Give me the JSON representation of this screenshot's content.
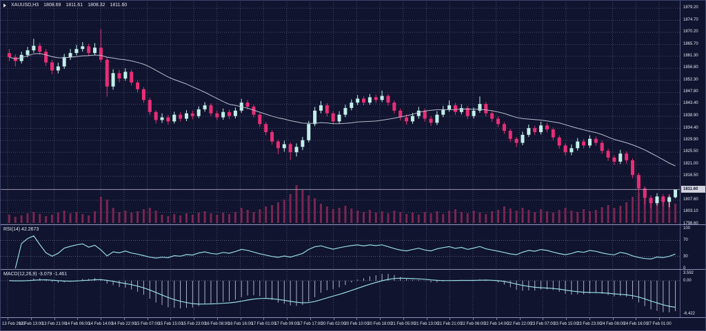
{
  "header": {
    "symbol_period": "XAUUSD,H3",
    "open": "1808.69",
    "high": "1811.61",
    "low": "1808.32",
    "close": "1811.60"
  },
  "panels": {
    "rsi_label": "RSI(14) 42.2673",
    "macd_label": "MACD(12,26,9) -3.079 -1.461",
    "rsi_scale_labels": [
      "100",
      "70",
      "30",
      "0"
    ],
    "rsi_scale_values": [
      100,
      70,
      30,
      0
    ],
    "rsi_levels": [
      70,
      30
    ],
    "macd_scale_labels": [
      "3.592",
      "0.00",
      "-6.422"
    ]
  },
  "colors": {
    "background": "#10142e",
    "bull": "#c2efe9",
    "bear": "#e82d76",
    "volume": "#7b2552",
    "ma": "#b9bdcf",
    "indicator_line": "#98dbe6",
    "histogram": "#aeb2cc",
    "grid": "#7d82ab",
    "separator": "#8f94bc",
    "text": "#e4e6f2",
    "price_line": "#c0b4c8",
    "price_badge_bg": "#d2d4de",
    "price_badge_text": "#10142e"
  },
  "chart_data": {
    "type": "candlestick",
    "symbol": "XAUUSD",
    "timeframe": "H3",
    "title": "XAUUSD,H3 gold candlestick chart with MA, volume, RSI(14) and MACD(12,26,9)",
    "ylim": [
      1798.6,
      1879.2
    ],
    "current_price": 1811.6,
    "ma_period": 21,
    "rsi_period": 14,
    "rsi_current": 42.2673,
    "macd_fast": 12,
    "macd_slow": 26,
    "macd_signal_period": 9,
    "macd_main_current": -3.079,
    "macd_signal_current": -1.461,
    "price_ticks": [
      "1879.20",
      "1874.70",
      "1870.20",
      "1865.70",
      "1861.30",
      "1856.80",
      "1852.30",
      "1847.80",
      "1843.40",
      "1838.90",
      "1834.40",
      "1829.90",
      "1825.50",
      "1821.00",
      "1816.50",
      "1807.60",
      "1803.10",
      "1798.60"
    ],
    "x_labels": [
      "13 Feb 2023",
      "13 Feb 13:00",
      "13 Feb 21:00",
      "14 Feb 06:00",
      "14 Feb 14:00",
      "14 Feb 22:00",
      "15 Feb 07:00",
      "15 Feb 15:00",
      "15 Feb 23:00",
      "16 Feb 08:00",
      "16 Feb 16:00",
      "17 Feb 01:00",
      "17 Feb 09:00",
      "17 Feb 17:00",
      "20 Feb 02:00",
      "20 Feb 10:00",
      "20 Feb 18:00",
      "21 Feb 05:00",
      "21 Feb 13:00",
      "21 Feb 21:00",
      "22 Feb 06:00",
      "22 Feb 14:00",
      "22 Feb 22:00",
      "23 Feb 07:00",
      "23 Feb 15:00",
      "23 Feb 23:00",
      "24 Feb 08:00",
      "24 Feb 16:00",
      "27 Feb 01:00"
    ],
    "candles": [
      [
        1862.5,
        1864.0,
        1859.5,
        1861.0,
        12
      ],
      [
        1861.0,
        1862.0,
        1857.5,
        1859.5,
        9
      ],
      [
        1859.5,
        1863.0,
        1858.6,
        1861.8,
        11
      ],
      [
        1861.8,
        1864.8,
        1860.9,
        1863.5,
        14
      ],
      [
        1863.5,
        1867.8,
        1862.6,
        1865.2,
        16
      ],
      [
        1865.2,
        1866.3,
        1861.8,
        1863.0,
        13
      ],
      [
        1863.0,
        1864.0,
        1857.7,
        1859.0,
        10
      ],
      [
        1859.0,
        1860.0,
        1854.6,
        1856.0,
        12
      ],
      [
        1856.0,
        1858.9,
        1854.9,
        1857.5,
        15
      ],
      [
        1857.5,
        1862.2,
        1856.6,
        1861.0,
        18
      ],
      [
        1861.0,
        1864.0,
        1859.9,
        1862.5,
        14
      ],
      [
        1862.5,
        1865.5,
        1861.6,
        1864.0,
        16
      ],
      [
        1864.0,
        1866.6,
        1863.0,
        1865.0,
        13
      ],
      [
        1865.0,
        1866.0,
        1861.4,
        1862.5,
        11
      ],
      [
        1862.5,
        1866.2,
        1861.7,
        1864.5,
        17
      ],
      [
        1864.5,
        1871.5,
        1859.0,
        1860.0,
        38
      ],
      [
        1860.0,
        1860.8,
        1846.2,
        1850.0,
        34
      ],
      [
        1850.0,
        1856.4,
        1848.8,
        1855.0,
        22
      ],
      [
        1855.0,
        1856.2,
        1851.6,
        1853.0,
        16
      ],
      [
        1853.0,
        1856.8,
        1852.2,
        1855.5,
        18
      ],
      [
        1855.5,
        1856.3,
        1850.4,
        1851.5,
        15
      ],
      [
        1851.5,
        1852.4,
        1847.8,
        1849.0,
        17
      ],
      [
        1849.0,
        1849.8,
        1843.9,
        1845.0,
        20
      ],
      [
        1845.0,
        1845.8,
        1839.4,
        1840.5,
        22
      ],
      [
        1840.5,
        1841.2,
        1836.2,
        1837.5,
        18
      ],
      [
        1837.5,
        1840.0,
        1836.4,
        1838.5,
        12
      ],
      [
        1838.5,
        1839.4,
        1835.8,
        1837.0,
        10
      ],
      [
        1837.0,
        1840.6,
        1836.2,
        1839.5,
        13
      ],
      [
        1839.5,
        1840.4,
        1836.9,
        1838.0,
        11
      ],
      [
        1838.0,
        1841.2,
        1837.1,
        1840.0,
        14
      ],
      [
        1840.0,
        1841.0,
        1837.8,
        1839.0,
        12
      ],
      [
        1839.0,
        1842.6,
        1838.2,
        1841.5,
        15
      ],
      [
        1841.5,
        1844.2,
        1840.6,
        1843.0,
        17
      ],
      [
        1843.0,
        1843.8,
        1839.0,
        1840.0,
        14
      ],
      [
        1840.0,
        1841.0,
        1837.4,
        1838.5,
        12
      ],
      [
        1838.5,
        1841.8,
        1837.6,
        1840.5,
        15
      ],
      [
        1840.5,
        1841.4,
        1837.9,
        1839.0,
        13
      ],
      [
        1839.0,
        1842.2,
        1838.1,
        1841.0,
        16
      ],
      [
        1841.0,
        1845.4,
        1840.2,
        1844.0,
        22
      ],
      [
        1844.0,
        1845.0,
        1841.4,
        1842.5,
        19
      ],
      [
        1842.5,
        1843.2,
        1838.4,
        1839.5,
        16
      ],
      [
        1839.5,
        1840.2,
        1834.9,
        1836.0,
        20
      ],
      [
        1836.0,
        1836.8,
        1831.8,
        1833.0,
        24
      ],
      [
        1833.0,
        1833.8,
        1828.3,
        1829.5,
        26
      ],
      [
        1829.5,
        1830.2,
        1824.8,
        1827.0,
        30
      ],
      [
        1827.0,
        1829.8,
        1825.7,
        1828.5,
        34
      ],
      [
        1828.5,
        1829.2,
        1822.6,
        1825.5,
        42
      ],
      [
        1825.5,
        1828.8,
        1823.9,
        1827.5,
        55
      ],
      [
        1827.5,
        1831.2,
        1826.3,
        1830.0,
        48
      ],
      [
        1830.0,
        1837.2,
        1829.2,
        1836.0,
        40
      ],
      [
        1836.0,
        1842.4,
        1835.2,
        1841.0,
        36
      ],
      [
        1841.0,
        1844.6,
        1840.0,
        1843.0,
        28
      ],
      [
        1843.0,
        1843.8,
        1838.9,
        1840.0,
        24
      ],
      [
        1840.0,
        1840.8,
        1835.9,
        1837.0,
        20
      ],
      [
        1837.0,
        1840.8,
        1836.1,
        1839.5,
        22
      ],
      [
        1839.5,
        1843.2,
        1838.6,
        1842.0,
        25
      ],
      [
        1842.0,
        1845.2,
        1841.1,
        1844.0,
        21
      ],
      [
        1844.0,
        1846.8,
        1843.1,
        1845.5,
        18
      ],
      [
        1845.5,
        1846.4,
        1843.0,
        1844.0,
        16
      ],
      [
        1844.0,
        1847.2,
        1843.2,
        1846.0,
        19
      ],
      [
        1846.0,
        1847.0,
        1843.9,
        1845.0,
        15
      ],
      [
        1845.0,
        1848.5,
        1844.2,
        1846.5,
        17
      ],
      [
        1846.5,
        1847.2,
        1842.9,
        1844.0,
        14
      ],
      [
        1844.0,
        1844.8,
        1839.9,
        1841.0,
        18
      ],
      [
        1841.0,
        1841.8,
        1837.3,
        1838.5,
        16
      ],
      [
        1838.5,
        1839.6,
        1835.8,
        1837.0,
        13
      ],
      [
        1837.0,
        1840.2,
        1836.1,
        1839.0,
        15
      ],
      [
        1839.0,
        1842.4,
        1838.0,
        1841.0,
        12
      ],
      [
        1841.0,
        1841.8,
        1836.9,
        1838.0,
        16
      ],
      [
        1838.0,
        1839.0,
        1835.3,
        1836.5,
        14
      ],
      [
        1836.5,
        1840.8,
        1835.6,
        1839.5,
        17
      ],
      [
        1839.5,
        1842.8,
        1838.6,
        1841.5,
        13
      ],
      [
        1841.5,
        1844.8,
        1840.6,
        1843.0,
        18
      ],
      [
        1843.0,
        1843.9,
        1839.4,
        1840.5,
        20
      ],
      [
        1840.5,
        1843.4,
        1839.6,
        1842.0,
        16
      ],
      [
        1842.0,
        1842.8,
        1837.9,
        1839.0,
        14
      ],
      [
        1839.0,
        1842.2,
        1838.1,
        1841.0,
        18
      ],
      [
        1841.0,
        1846.3,
        1840.2,
        1843.5,
        15
      ],
      [
        1843.5,
        1844.2,
        1838.9,
        1840.0,
        13
      ],
      [
        1840.0,
        1840.8,
        1836.8,
        1838.0,
        17
      ],
      [
        1838.0,
        1838.8,
        1834.9,
        1836.0,
        19
      ],
      [
        1836.0,
        1836.8,
        1832.3,
        1833.5,
        24
      ],
      [
        1833.5,
        1834.2,
        1829.3,
        1830.5,
        21
      ],
      [
        1830.5,
        1831.2,
        1827.4,
        1829.0,
        18
      ],
      [
        1829.0,
        1833.2,
        1828.1,
        1832.0,
        22
      ],
      [
        1832.0,
        1835.8,
        1831.2,
        1834.5,
        19
      ],
      [
        1834.5,
        1835.4,
        1831.9,
        1833.0,
        16
      ],
      [
        1833.0,
        1836.9,
        1832.1,
        1835.5,
        20
      ],
      [
        1835.5,
        1836.4,
        1832.9,
        1834.0,
        17
      ],
      [
        1834.0,
        1834.8,
        1829.9,
        1831.0,
        15
      ],
      [
        1831.0,
        1831.8,
        1826.8,
        1828.0,
        19
      ],
      [
        1828.0,
        1828.8,
        1824.3,
        1825.5,
        22
      ],
      [
        1825.5,
        1828.4,
        1824.4,
        1827.0,
        18
      ],
      [
        1827.0,
        1830.8,
        1826.1,
        1829.5,
        16
      ],
      [
        1829.5,
        1830.4,
        1826.9,
        1828.0,
        20
      ],
      [
        1828.0,
        1831.8,
        1827.1,
        1830.5,
        17
      ],
      [
        1830.5,
        1831.4,
        1827.9,
        1829.0,
        19
      ],
      [
        1829.0,
        1829.8,
        1824.9,
        1826.0,
        23
      ],
      [
        1826.0,
        1826.8,
        1822.3,
        1823.5,
        26
      ],
      [
        1823.5,
        1824.4,
        1820.8,
        1822.0,
        22
      ],
      [
        1822.0,
        1826.4,
        1821.1,
        1825.0,
        25
      ],
      [
        1825.0,
        1825.8,
        1821.3,
        1822.5,
        30
      ],
      [
        1822.5,
        1823.2,
        1815.8,
        1817.0,
        38
      ],
      [
        1817.0,
        1817.8,
        1810.4,
        1812.0,
        44
      ],
      [
        1812.0,
        1812.8,
        1805.9,
        1808.5,
        40
      ],
      [
        1808.5,
        1809.4,
        1804.8,
        1806.5,
        34
      ],
      [
        1806.5,
        1810.2,
        1805.6,
        1809.0,
        30
      ],
      [
        1809.0,
        1809.8,
        1805.4,
        1807.0,
        36
      ],
      [
        1807.0,
        1809.2,
        1805.0,
        1808.7,
        42
      ],
      [
        1808.7,
        1811.6,
        1808.3,
        1811.6,
        28
      ]
    ]
  }
}
